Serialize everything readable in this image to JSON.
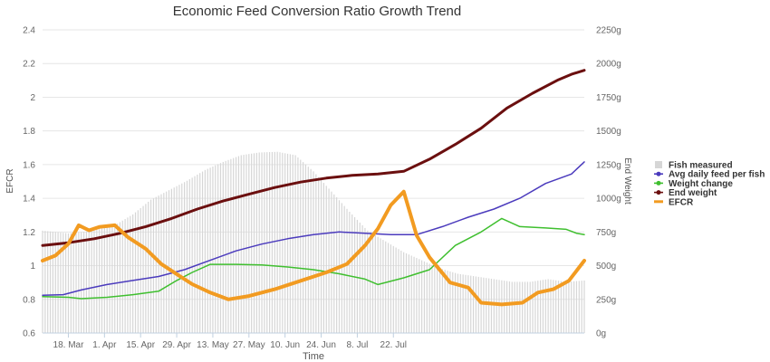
{
  "chart_data": {
    "type": "line",
    "title": "Economic Feed Conversion Ratio Growth Trend",
    "xlabel": "Time",
    "ylabel_left": "EFCR",
    "ylabel_right": "End Weight",
    "x_ticks": [
      "18. Mar",
      "1. Apr",
      "15. Apr",
      "29. Apr",
      "13. May",
      "27. May",
      "10. Jun",
      "24. Jun",
      "8. Jul",
      "22. Jul"
    ],
    "y_left_ticks": [
      "0.6",
      "0.8",
      "1",
      "1.2",
      "1.4",
      "1.6",
      "1.8",
      "2",
      "2.2",
      "2.4"
    ],
    "y_right_ticks": [
      "0g",
      "250g",
      "500g",
      "750g",
      "1000g",
      "1250g",
      "1500g",
      "1750g",
      "2000g",
      "2250g"
    ],
    "ylim_left": [
      0.6,
      2.4
    ],
    "ylim_right": [
      0,
      2250
    ],
    "x_domain_days": [
      0,
      210
    ],
    "legend_position": "right",
    "colors": {
      "fish_measured": "#d6d6d6",
      "avg_daily_feed": "#4b3bbd",
      "weight_change": "#3fbf2f",
      "end_weight": "#6b0f0f",
      "efcr": "#f29b21"
    },
    "series": [
      {
        "name": "Fish measured",
        "kind": "column",
        "axis": "right",
        "color": "#d6d6d6",
        "points": [
          [
            0,
            760
          ],
          [
            10,
            740
          ],
          [
            20,
            760
          ],
          [
            28,
            800
          ],
          [
            35,
            880
          ],
          [
            42,
            990
          ],
          [
            49,
            1060
          ],
          [
            56,
            1130
          ],
          [
            63,
            1210
          ],
          [
            70,
            1270
          ],
          [
            77,
            1320
          ],
          [
            84,
            1340
          ],
          [
            91,
            1345
          ],
          [
            98,
            1320
          ],
          [
            105,
            1200
          ],
          [
            112,
            1050
          ],
          [
            119,
            900
          ],
          [
            126,
            760
          ],
          [
            133,
            680
          ],
          [
            140,
            600
          ],
          [
            147,
            540
          ],
          [
            154,
            480
          ],
          [
            161,
            440
          ],
          [
            168,
            420
          ],
          [
            175,
            400
          ],
          [
            182,
            380
          ],
          [
            189,
            380
          ],
          [
            196,
            400
          ],
          [
            203,
            380
          ],
          [
            210,
            390
          ]
        ]
      },
      {
        "name": "Avg daily feed per fish",
        "kind": "line",
        "axis": "right",
        "color": "#4b3bbd",
        "points": [
          [
            0,
            280
          ],
          [
            8,
            285
          ],
          [
            15,
            320
          ],
          [
            25,
            360
          ],
          [
            35,
            390
          ],
          [
            45,
            420
          ],
          [
            55,
            470
          ],
          [
            65,
            540
          ],
          [
            75,
            610
          ],
          [
            85,
            660
          ],
          [
            95,
            700
          ],
          [
            105,
            730
          ],
          [
            115,
            750
          ],
          [
            125,
            740
          ],
          [
            135,
            730
          ],
          [
            145,
            730
          ],
          [
            155,
            790
          ],
          [
            165,
            860
          ],
          [
            175,
            920
          ],
          [
            185,
            1000
          ],
          [
            195,
            1110
          ],
          [
            205,
            1180
          ],
          [
            210,
            1270
          ]
        ]
      },
      {
        "name": "Weight change",
        "kind": "line",
        "axis": "right",
        "color": "#3fbf2f",
        "points": [
          [
            0,
            270
          ],
          [
            10,
            265
          ],
          [
            15,
            255
          ],
          [
            25,
            265
          ],
          [
            35,
            285
          ],
          [
            45,
            310
          ],
          [
            52,
            390
          ],
          [
            58,
            450
          ],
          [
            65,
            510
          ],
          [
            75,
            510
          ],
          [
            85,
            505
          ],
          [
            95,
            490
          ],
          [
            105,
            470
          ],
          [
            115,
            440
          ],
          [
            125,
            400
          ],
          [
            130,
            360
          ],
          [
            140,
            410
          ],
          [
            150,
            470
          ],
          [
            160,
            650
          ],
          [
            170,
            750
          ],
          [
            178,
            850
          ],
          [
            185,
            790
          ],
          [
            195,
            780
          ],
          [
            203,
            770
          ],
          [
            207,
            740
          ],
          [
            210,
            730
          ]
        ]
      },
      {
        "name": "End weight",
        "kind": "line",
        "axis": "right",
        "color": "#6b0f0f",
        "points": [
          [
            0,
            650
          ],
          [
            10,
            670
          ],
          [
            20,
            700
          ],
          [
            30,
            740
          ],
          [
            40,
            790
          ],
          [
            50,
            850
          ],
          [
            60,
            920
          ],
          [
            70,
            980
          ],
          [
            80,
            1030
          ],
          [
            90,
            1080
          ],
          [
            100,
            1120
          ],
          [
            110,
            1150
          ],
          [
            120,
            1170
          ],
          [
            130,
            1180
          ],
          [
            140,
            1200
          ],
          [
            150,
            1290
          ],
          [
            160,
            1400
          ],
          [
            170,
            1520
          ],
          [
            180,
            1670
          ],
          [
            190,
            1780
          ],
          [
            200,
            1880
          ],
          [
            205,
            1920
          ],
          [
            210,
            1950
          ]
        ]
      },
      {
        "name": "EFCR",
        "kind": "line",
        "axis": "left",
        "color": "#f29b21",
        "points": [
          [
            0,
            1.03
          ],
          [
            5,
            1.06
          ],
          [
            10,
            1.13
          ],
          [
            14,
            1.24
          ],
          [
            18,
            1.21
          ],
          [
            22,
            1.23
          ],
          [
            28,
            1.24
          ],
          [
            33,
            1.17
          ],
          [
            40,
            1.1
          ],
          [
            46,
            1.01
          ],
          [
            52,
            0.95
          ],
          [
            58,
            0.89
          ],
          [
            65,
            0.84
          ],
          [
            72,
            0.8
          ],
          [
            80,
            0.82
          ],
          [
            90,
            0.86
          ],
          [
            100,
            0.91
          ],
          [
            110,
            0.96
          ],
          [
            118,
            1.01
          ],
          [
            125,
            1.12
          ],
          [
            130,
            1.22
          ],
          [
            135,
            1.36
          ],
          [
            140,
            1.44
          ],
          [
            145,
            1.18
          ],
          [
            150,
            1.05
          ],
          [
            158,
            0.9
          ],
          [
            165,
            0.87
          ],
          [
            170,
            0.78
          ],
          [
            178,
            0.77
          ],
          [
            186,
            0.78
          ],
          [
            192,
            0.84
          ],
          [
            198,
            0.86
          ],
          [
            204,
            0.91
          ],
          [
            210,
            1.03
          ]
        ]
      }
    ]
  }
}
